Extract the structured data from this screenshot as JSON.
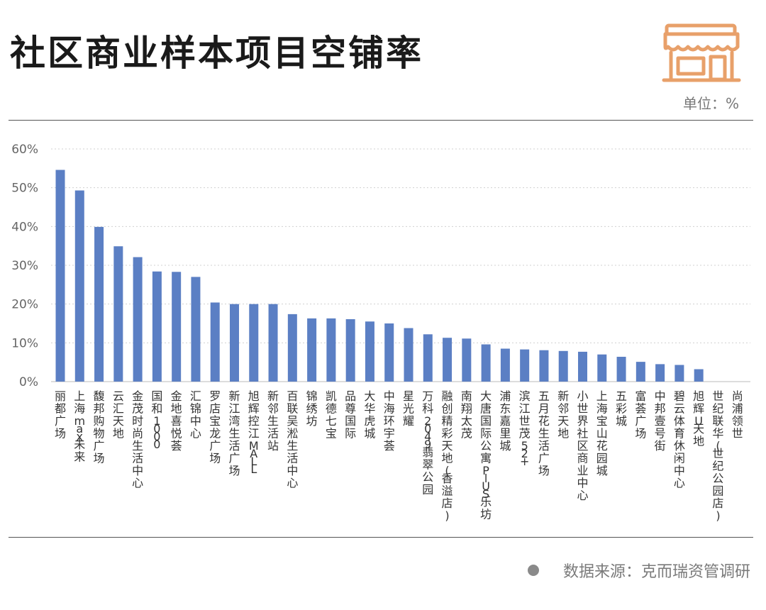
{
  "header": {
    "title": "社区商业样本项目空铺率",
    "unit": "单位：%"
  },
  "source": {
    "text": "数据来源：克而瑞资管调研"
  },
  "colors": {
    "bar": "#5b7fc4",
    "icon": "#e8a06a",
    "grid": "#d0d0d0",
    "text": "#333333"
  },
  "chart_data": {
    "type": "bar",
    "title": "社区商业样本项目空铺率",
    "ylabel": "",
    "xlabel": "",
    "ylim": [
      0,
      60
    ],
    "yticks": [
      0,
      10,
      20,
      30,
      40,
      50,
      60
    ],
    "ytick_labels": [
      "0%",
      "10%",
      "20%",
      "30%",
      "40%",
      "50%",
      "60%"
    ],
    "grid": true,
    "categories": [
      "丽都广场",
      "上海max未来",
      "馥邦购物广场",
      "云汇天地",
      "金茂时尚生活中心",
      "国和1000",
      "金地喜悦荟",
      "汇锦中心",
      "罗店宝龙广场",
      "新江湾生活广场",
      "旭辉控江MALL",
      "新邻生活站",
      "百联吴淞生活中心",
      "锦绣坊",
      "凯德七宝",
      "品尊国际",
      "大华虎城",
      "中海环宇荟",
      "星光耀",
      "万科2049翡翠公园",
      "融创精彩天地(香溢店)",
      "南翔太茂",
      "大唐国际公寓PlUS乐坊",
      "浦东嘉里城",
      "滨江世茂52+",
      "五月花生活广场",
      "新邻天地",
      "小世界社区商业中心",
      "上海宝山花园城",
      "五彩城",
      "富荟广场",
      "中邦壹号街",
      "碧云体育休闲中心",
      "旭辉U天地",
      "世纪联华(世纪公园店)",
      "尚浦领世"
    ],
    "values": [
      54.6,
      49.3,
      39.9,
      34.9,
      32.1,
      28.4,
      28.3,
      27.0,
      20.4,
      20.0,
      20.0,
      20.0,
      17.4,
      16.3,
      16.3,
      16.1,
      15.5,
      15.0,
      13.8,
      12.2,
      11.3,
      11.1,
      9.6,
      8.5,
      8.3,
      8.1,
      7.9,
      7.7,
      7.0,
      6.4,
      5.1,
      4.5,
      4.3,
      3.2,
      0,
      0
    ]
  }
}
